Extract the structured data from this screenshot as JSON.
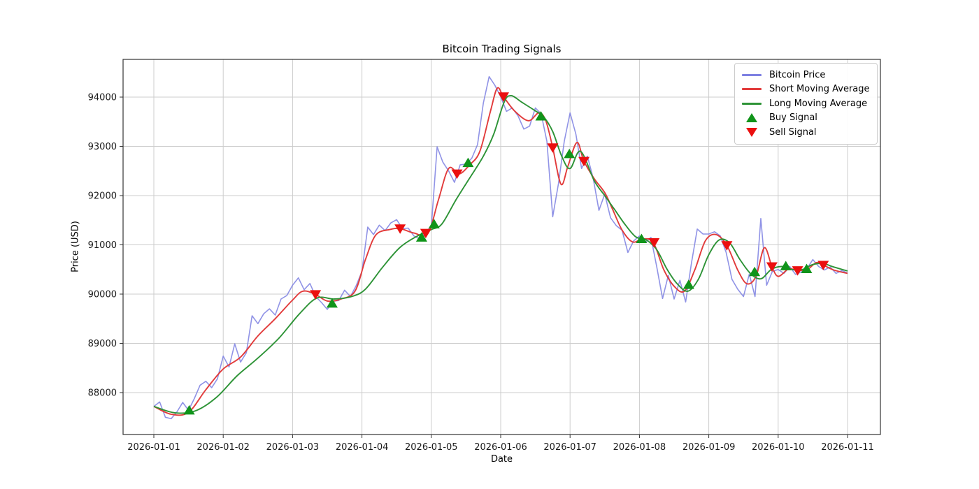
{
  "figure": {
    "title": "Bitcoin Trading Signals",
    "xlabel": "Date",
    "ylabel": "Price (USD)"
  },
  "legend": {
    "position": "upper right",
    "items": [
      {
        "label": "Bitcoin Price",
        "sample": "line",
        "color": "#7d80e2"
      },
      {
        "label": "Short Moving Average",
        "sample": "line",
        "color": "#e23b3b"
      },
      {
        "label": "Long Moving Average",
        "sample": "line",
        "color": "#2d9336"
      },
      {
        "label": "Buy Signal",
        "sample": "triangle-up",
        "color": "#10941a"
      },
      {
        "label": "Sell Signal",
        "sample": "triangle-down",
        "color": "#eb0f0f"
      }
    ]
  },
  "chart_data": {
    "type": "line",
    "title": "Bitcoin Trading Signals",
    "xlabel": "Date",
    "ylabel": "Price (USD)",
    "grid": true,
    "legend_position": "upper right",
    "x_tick_labels": [
      "2026-01-01",
      "2026-01-02",
      "2026-01-03",
      "2026-01-04",
      "2026-01-05",
      "2026-01-06",
      "2026-01-07",
      "2026-01-08",
      "2026-01-09",
      "2026-01-10",
      "2026-01-11"
    ],
    "y_ticks": [
      88000,
      89000,
      90000,
      91000,
      92000,
      93000,
      94000
    ],
    "x_range_days": [
      0,
      10
    ],
    "ylim": [
      87040,
      94780
    ],
    "sample_interval_hours": 2,
    "series": [
      {
        "name": "Bitcoin Price",
        "color": "#7d80e2",
        "t_start": 0,
        "t_step": 0.0833333,
        "values": [
          87720,
          87810,
          87500,
          87470,
          87610,
          87800,
          87640,
          87880,
          88150,
          88230,
          88100,
          88280,
          88740,
          88520,
          88990,
          88620,
          88810,
          89560,
          89400,
          89600,
          89700,
          89575,
          89900,
          89970,
          90180,
          90330,
          90090,
          90215,
          89950,
          89830,
          89690,
          89855,
          89870,
          90080,
          89950,
          90170,
          90460,
          91360,
          91210,
          91400,
          91290,
          91445,
          91510,
          91330,
          91340,
          91180,
          91120,
          91270,
          91370,
          92990,
          92680,
          92500,
          92270,
          92625,
          92640,
          92760,
          93035,
          93880,
          94415,
          94240,
          94010,
          93710,
          93780,
          93620,
          93350,
          93410,
          93780,
          93660,
          93100,
          91570,
          92250,
          93100,
          93680,
          93250,
          92550,
          92800,
          92350,
          91700,
          92030,
          91550,
          91390,
          91295,
          90845,
          91080,
          91180,
          91050,
          91150,
          90550,
          89910,
          90380,
          89900,
          90280,
          89840,
          90630,
          91320,
          91220,
          91220,
          91265,
          91180,
          90845,
          90300,
          90100,
          89950,
          90405,
          89950,
          91535,
          90180,
          90460,
          90500,
          90420,
          90560,
          90400,
          90450,
          90520,
          90700,
          90560,
          90490,
          90550,
          90420,
          90480,
          90430
        ]
      },
      {
        "name": "Short Moving Average",
        "color": "#e23b3b",
        "points": [
          [
            0,
            87720
          ],
          [
            0.25,
            87560
          ],
          [
            0.5,
            87600
          ],
          [
            0.75,
            88060
          ],
          [
            1.0,
            88480
          ],
          [
            1.25,
            88720
          ],
          [
            1.5,
            89150
          ],
          [
            1.75,
            89500
          ],
          [
            2.0,
            89880
          ],
          [
            2.15,
            90060
          ],
          [
            2.33,
            89995
          ],
          [
            2.5,
            89860
          ],
          [
            2.7,
            89900
          ],
          [
            2.9,
            90060
          ],
          [
            3.05,
            90700
          ],
          [
            3.2,
            91200
          ],
          [
            3.4,
            91310
          ],
          [
            3.55,
            91330
          ],
          [
            3.75,
            91240
          ],
          [
            3.95,
            91230
          ],
          [
            4.1,
            91900
          ],
          [
            4.25,
            92550
          ],
          [
            4.4,
            92440
          ],
          [
            4.55,
            92620
          ],
          [
            4.7,
            92900
          ],
          [
            4.85,
            93700
          ],
          [
            4.95,
            94180
          ],
          [
            5.04,
            94010
          ],
          [
            5.2,
            93720
          ],
          [
            5.4,
            93520
          ],
          [
            5.55,
            93680
          ],
          [
            5.65,
            93520
          ],
          [
            5.75,
            92975
          ],
          [
            5.87,
            92230
          ],
          [
            5.97,
            92600
          ],
          [
            6.1,
            93080
          ],
          [
            6.2,
            92700
          ],
          [
            6.35,
            92340
          ],
          [
            6.5,
            92060
          ],
          [
            6.62,
            91700
          ],
          [
            6.75,
            91300
          ],
          [
            6.9,
            91060
          ],
          [
            7.05,
            91120
          ],
          [
            7.2,
            91050
          ],
          [
            7.35,
            90500
          ],
          [
            7.5,
            90160
          ],
          [
            7.65,
            90060
          ],
          [
            7.8,
            90500
          ],
          [
            7.95,
            91080
          ],
          [
            8.1,
            91210
          ],
          [
            8.26,
            90990
          ],
          [
            8.42,
            90480
          ],
          [
            8.55,
            90210
          ],
          [
            8.68,
            90360
          ],
          [
            8.8,
            90940
          ],
          [
            8.91,
            90560
          ],
          [
            9.0,
            90360
          ],
          [
            9.15,
            90510
          ],
          [
            9.28,
            90480
          ],
          [
            9.42,
            90500
          ],
          [
            9.55,
            90640
          ],
          [
            9.65,
            90590
          ],
          [
            9.8,
            90490
          ],
          [
            10.0,
            90420
          ]
        ]
      },
      {
        "name": "Long Moving Average",
        "color": "#2d9336",
        "points": [
          [
            0,
            87720
          ],
          [
            0.3,
            87590
          ],
          [
            0.6,
            87630
          ],
          [
            0.9,
            87900
          ],
          [
            1.2,
            88340
          ],
          [
            1.5,
            88700
          ],
          [
            1.8,
            89100
          ],
          [
            2.1,
            89600
          ],
          [
            2.35,
            89920
          ],
          [
            2.6,
            89900
          ],
          [
            2.85,
            89950
          ],
          [
            3.05,
            90100
          ],
          [
            3.3,
            90550
          ],
          [
            3.55,
            90950
          ],
          [
            3.8,
            91180
          ],
          [
            4.0,
            91310
          ],
          [
            4.15,
            91420
          ],
          [
            4.35,
            91900
          ],
          [
            4.55,
            92350
          ],
          [
            4.75,
            92800
          ],
          [
            4.9,
            93250
          ],
          [
            5.05,
            93900
          ],
          [
            5.15,
            94030
          ],
          [
            5.3,
            93900
          ],
          [
            5.5,
            93720
          ],
          [
            5.62,
            93600
          ],
          [
            5.75,
            93300
          ],
          [
            5.88,
            92800
          ],
          [
            6.0,
            92550
          ],
          [
            6.15,
            92900
          ],
          [
            6.35,
            92300
          ],
          [
            6.5,
            92000
          ],
          [
            6.65,
            91700
          ],
          [
            6.8,
            91400
          ],
          [
            6.95,
            91160
          ],
          [
            7.1,
            91100
          ],
          [
            7.25,
            90900
          ],
          [
            7.4,
            90500
          ],
          [
            7.55,
            90200
          ],
          [
            7.7,
            90060
          ],
          [
            7.85,
            90300
          ],
          [
            8.0,
            90800
          ],
          [
            8.15,
            91100
          ],
          [
            8.3,
            91040
          ],
          [
            8.45,
            90700
          ],
          [
            8.6,
            90420
          ],
          [
            8.75,
            90310
          ],
          [
            8.9,
            90500
          ],
          [
            9.05,
            90560
          ],
          [
            9.2,
            90500
          ],
          [
            9.35,
            90500
          ],
          [
            9.5,
            90600
          ],
          [
            9.65,
            90620
          ],
          [
            9.8,
            90550
          ],
          [
            10.0,
            90470
          ]
        ]
      }
    ],
    "buy_signals": {
      "name": "Buy Signal",
      "marker": "triangle-up",
      "color": "#10941a",
      "points": [
        [
          0.51,
          87640
        ],
        [
          2.57,
          89810
        ],
        [
          3.86,
          91150
        ],
        [
          4.04,
          91420
        ],
        [
          4.53,
          92665
        ],
        [
          5.58,
          93610
        ],
        [
          5.99,
          92845
        ],
        [
          7.03,
          91120
        ],
        [
          7.71,
          90190
        ],
        [
          8.66,
          90450
        ],
        [
          9.11,
          90570
        ],
        [
          9.41,
          90510
        ]
      ]
    },
    "sell_signals": {
      "name": "Sell Signal",
      "marker": "triangle-down",
      "color": "#eb0f0f",
      "points": [
        [
          2.33,
          89995
        ],
        [
          3.55,
          91330
        ],
        [
          3.92,
          91240
        ],
        [
          4.37,
          92445
        ],
        [
          5.04,
          94010
        ],
        [
          5.75,
          92975
        ],
        [
          6.2,
          92700
        ],
        [
          7.21,
          91050
        ],
        [
          8.26,
          90990
        ],
        [
          8.91,
          90560
        ],
        [
          9.28,
          90480
        ],
        [
          9.65,
          90590
        ]
      ]
    },
    "style": {
      "grid_color": "#cccccc",
      "spine_color": "#333333",
      "tick_label_color": "#1a1a1a",
      "background": "#ffffff"
    }
  }
}
